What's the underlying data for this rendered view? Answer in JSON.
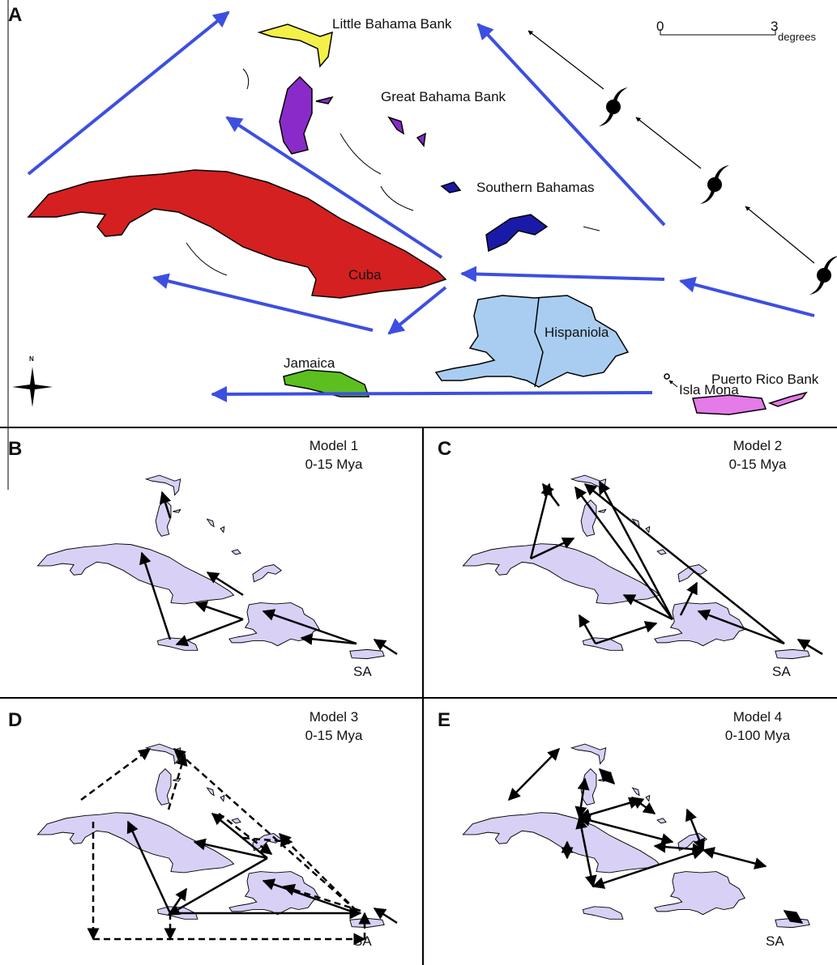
{
  "panels": [
    {
      "label": "A",
      "places": [
        "Little Bahama Bank",
        "Great Bahama Bank",
        "Southern Bahamas",
        "Cuba",
        "Jamaica",
        "Hispaniola",
        "Puerto Rico Bank",
        "Isla Mona"
      ],
      "scale": {
        "start": "0",
        "end": "3",
        "unit": "degrees"
      },
      "compass": "N"
    },
    {
      "label": "B",
      "model": "Model 1",
      "period": "0-15 Mya",
      "source": "SA"
    },
    {
      "label": "C",
      "model": "Model 2",
      "period": "0-15 Mya",
      "source": "SA"
    },
    {
      "label": "D",
      "model": "Model 3",
      "period": "0-15 Mya",
      "source": "SA"
    },
    {
      "label": "E",
      "model": "Model 4",
      "period": "0-100 Mya",
      "source": "SA"
    }
  ]
}
